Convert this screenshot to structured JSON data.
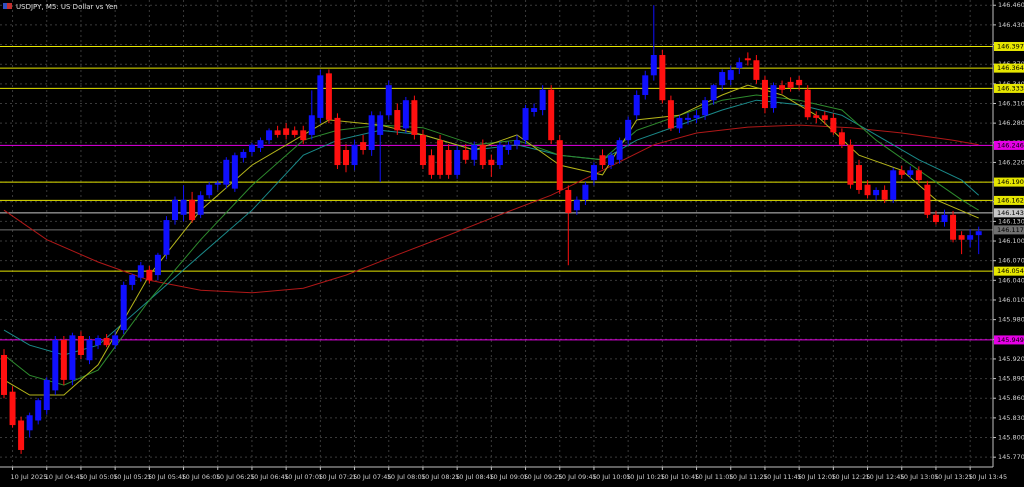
{
  "chart_data": {
    "type": "candlestick",
    "title": "USDJPY, M5:  US Dollar vs Yen",
    "categories": [
      null,
      "10 Jul 2025",
      null,
      null,
      null,
      "10 Jul 04:45",
      null,
      null,
      null,
      "10 Jul 05:05",
      null,
      null,
      null,
      "10 Jul 05:25",
      null,
      null,
      null,
      "10 Jul 05:45",
      null,
      null,
      null,
      "10 Jul 06:05",
      null,
      null,
      null,
      "10 Jul 06:25",
      null,
      null,
      null,
      "10 Jul 06:45",
      null,
      null,
      null,
      "10 Jul 07:05",
      null,
      null,
      null,
      "10 Jul 07:25",
      null,
      null,
      null,
      "10 Jul 07:45",
      null,
      null,
      null,
      "10 Jul 08:05",
      null,
      null,
      null,
      "10 Jul 08:25",
      null,
      null,
      null,
      "10 Jul 08:45",
      null,
      null,
      null,
      "10 Jul 09:05",
      null,
      null,
      null,
      "10 Jul 09:25",
      null,
      null,
      null,
      "10 Jul 09:45",
      null,
      null,
      null,
      "10 Jul 10:05",
      null,
      null,
      null,
      "10 Jul 10:25",
      null,
      null,
      null,
      "10 Jul 10:45",
      null,
      null,
      null,
      "10 Jul 11:05",
      null,
      null,
      null,
      "10 Jul 11:25",
      null,
      null,
      null,
      "10 Jul 11:45",
      null,
      null,
      null,
      "10 Jul 12:05",
      null,
      null,
      null,
      "10 Jul 12:25",
      null,
      null,
      null,
      "10 Jul 12:45",
      null,
      null,
      null,
      "10 Jul 13:05",
      null,
      null,
      null,
      "10 Jul 13:25",
      null,
      null,
      null,
      "10 Jul 13:45",
      null
    ],
    "ohlc": [
      [
        145.926,
        145.935,
        145.86,
        145.865
      ],
      [
        145.87,
        145.878,
        145.815,
        145.819
      ],
      [
        145.826,
        145.832,
        145.775,
        145.781
      ],
      [
        145.811,
        145.838,
        145.8,
        145.834
      ],
      [
        145.826,
        145.86,
        145.82,
        145.857
      ],
      [
        145.842,
        145.892,
        145.835,
        145.888
      ],
      [
        145.872,
        145.955,
        145.865,
        145.949
      ],
      [
        145.949,
        145.955,
        145.88,
        145.888
      ],
      [
        145.888,
        145.96,
        145.88,
        145.956
      ],
      [
        145.955,
        145.962,
        145.92,
        145.926
      ],
      [
        145.918,
        145.955,
        145.912,
        145.949
      ],
      [
        145.941,
        145.956,
        145.935,
        145.952
      ],
      [
        145.952,
        145.958,
        145.938,
        145.941
      ],
      [
        145.941,
        145.962,
        145.935,
        145.956
      ],
      [
        145.964,
        146.038,
        145.958,
        146.033
      ],
      [
        146.033,
        146.05,
        146.025,
        146.048
      ],
      [
        146.044,
        146.068,
        146.038,
        146.063
      ],
      [
        146.056,
        146.062,
        146.035,
        146.04
      ],
      [
        146.048,
        146.082,
        146.04,
        146.079
      ],
      [
        146.079,
        146.138,
        146.072,
        146.132
      ],
      [
        146.132,
        146.168,
        146.125,
        146.163
      ],
      [
        146.14,
        146.185,
        146.13,
        146.163
      ],
      [
        146.163,
        146.175,
        146.128,
        146.132
      ],
      [
        146.14,
        146.176,
        146.135,
        146.17
      ],
      [
        146.17,
        146.19,
        146.165,
        146.186
      ],
      [
        146.186,
        146.192,
        146.178,
        146.189
      ],
      [
        146.186,
        146.228,
        146.18,
        146.224
      ],
      [
        146.18,
        146.235,
        146.175,
        146.231
      ],
      [
        146.227,
        146.24,
        146.22,
        146.236
      ],
      [
        146.236,
        146.25,
        146.23,
        146.247
      ],
      [
        146.242,
        146.258,
        146.236,
        146.254
      ],
      [
        146.254,
        146.272,
        146.248,
        146.269
      ],
      [
        146.269,
        146.276,
        146.258,
        146.262
      ],
      [
        146.272,
        146.28,
        146.255,
        146.262
      ],
      [
        146.269,
        146.275,
        146.258,
        146.262
      ],
      [
        146.269,
        146.276,
        146.248,
        146.254
      ],
      [
        146.262,
        146.33,
        146.255,
        146.292
      ],
      [
        146.288,
        146.362,
        146.28,
        146.353
      ],
      [
        146.356,
        146.362,
        146.28,
        146.285
      ],
      [
        146.288,
        146.295,
        146.21,
        146.216
      ],
      [
        146.239,
        146.248,
        146.205,
        146.216
      ],
      [
        146.216,
        146.255,
        146.208,
        146.247
      ],
      [
        146.251,
        146.262,
        146.232,
        146.239
      ],
      [
        146.239,
        146.298,
        146.23,
        146.292
      ],
      [
        146.262,
        146.298,
        146.19,
        146.292
      ],
      [
        146.292,
        146.345,
        146.285,
        146.338
      ],
      [
        146.3,
        146.31,
        146.262,
        146.269
      ],
      [
        146.272,
        146.32,
        146.265,
        146.315
      ],
      [
        146.315,
        146.322,
        146.255,
        146.262
      ],
      [
        146.262,
        146.27,
        146.21,
        146.216
      ],
      [
        146.231,
        146.24,
        146.195,
        146.201
      ],
      [
        146.254,
        146.262,
        146.195,
        146.201
      ],
      [
        146.239,
        146.248,
        146.195,
        146.201
      ],
      [
        146.201,
        146.245,
        146.195,
        146.239
      ],
      [
        146.239,
        146.248,
        146.218,
        146.224
      ],
      [
        146.224,
        146.252,
        146.215,
        146.247
      ],
      [
        146.247,
        146.255,
        146.21,
        146.216
      ],
      [
        146.224,
        146.232,
        146.198,
        146.216
      ],
      [
        146.216,
        146.252,
        146.21,
        146.247
      ],
      [
        146.239,
        146.252,
        146.232,
        146.247
      ],
      [
        146.247,
        146.262,
        146.24,
        146.254
      ],
      [
        146.254,
        146.308,
        146.248,
        146.303
      ],
      [
        146.297,
        146.31,
        146.29,
        146.303
      ],
      [
        146.3,
        146.338,
        146.292,
        146.331
      ],
      [
        146.331,
        146.338,
        146.248,
        146.254
      ],
      [
        146.254,
        146.262,
        146.172,
        146.178
      ],
      [
        146.178,
        146.185,
        146.063,
        146.143
      ],
      [
        146.147,
        146.168,
        146.14,
        146.163
      ],
      [
        146.163,
        146.19,
        146.155,
        146.186
      ],
      [
        146.193,
        146.22,
        146.185,
        146.216
      ],
      [
        146.231,
        146.24,
        146.21,
        146.216
      ],
      [
        146.216,
        146.236,
        146.21,
        146.231
      ],
      [
        146.224,
        146.258,
        146.218,
        146.254
      ],
      [
        146.254,
        146.29,
        146.248,
        146.285
      ],
      [
        146.292,
        146.33,
        146.285,
        146.323
      ],
      [
        146.323,
        146.36,
        146.316,
        146.353
      ],
      [
        146.353,
        146.46,
        146.345,
        146.384
      ],
      [
        146.384,
        146.392,
        146.31,
        146.315
      ],
      [
        146.315,
        146.322,
        146.268,
        146.272
      ],
      [
        146.272,
        146.292,
        146.265,
        146.288
      ],
      [
        146.285,
        146.295,
        146.278,
        146.288
      ],
      [
        146.288,
        146.3,
        146.28,
        146.292
      ],
      [
        146.292,
        146.32,
        146.285,
        146.315
      ],
      [
        146.315,
        146.34,
        146.308,
        146.338
      ],
      [
        146.338,
        146.362,
        146.33,
        146.358
      ],
      [
        146.346,
        146.368,
        146.338,
        146.361
      ],
      [
        146.364,
        146.38,
        146.355,
        146.373
      ],
      [
        146.379,
        146.388,
        146.368,
        146.376
      ],
      [
        146.376,
        146.384,
        146.34,
        146.346
      ],
      [
        146.346,
        146.352,
        146.295,
        146.303
      ],
      [
        146.303,
        146.342,
        146.296,
        146.338
      ],
      [
        146.338,
        146.345,
        146.325,
        146.331
      ],
      [
        146.343,
        146.35,
        146.328,
        146.334
      ],
      [
        146.346,
        146.352,
        146.33,
        146.338
      ],
      [
        146.331,
        146.338,
        146.285,
        146.289
      ],
      [
        146.292,
        146.298,
        146.28,
        146.288
      ],
      [
        146.292,
        146.298,
        146.278,
        146.285
      ],
      [
        146.288,
        146.295,
        146.262,
        146.266
      ],
      [
        146.266,
        146.272,
        146.242,
        146.247
      ],
      [
        146.247,
        146.255,
        146.18,
        146.186
      ],
      [
        146.216,
        146.224,
        146.172,
        146.178
      ],
      [
        146.186,
        146.193,
        146.165,
        146.17
      ],
      [
        146.17,
        146.182,
        146.162,
        146.178
      ],
      [
        146.178,
        146.185,
        146.158,
        146.163
      ],
      [
        146.163,
        146.212,
        146.158,
        146.208
      ],
      [
        146.208,
        146.215,
        146.195,
        146.201
      ],
      [
        146.201,
        146.214,
        146.195,
        146.208
      ],
      [
        146.208,
        146.214,
        146.188,
        146.193
      ],
      [
        146.186,
        146.192,
        146.135,
        146.14
      ],
      [
        146.14,
        146.146,
        146.125,
        146.129
      ],
      [
        146.129,
        146.148,
        146.122,
        146.14
      ],
      [
        146.14,
        146.146,
        146.098,
        146.102
      ],
      [
        146.109,
        146.115,
        146.08,
        146.102
      ],
      [
        146.102,
        146.118,
        146.09,
        146.109
      ],
      [
        146.109,
        146.122,
        146.08,
        146.115
      ]
    ],
    "up_color": "#1010ff",
    "down_color": "#ff1010",
    "series": [
      {
        "color": "#b01818",
        "x": [
          0,
          5,
          11,
          17,
          23,
          29,
          35,
          40,
          46,
          52,
          58,
          64,
          70,
          76,
          81,
          87,
          93,
          99,
          105,
          111,
          114
        ],
        "values": [
          146.147,
          146.102,
          146.068,
          146.04,
          146.025,
          146.021,
          146.028,
          146.048,
          146.079,
          146.109,
          146.14,
          146.17,
          146.208,
          146.247,
          146.265,
          146.274,
          146.277,
          146.273,
          146.265,
          146.254,
          146.247
        ]
      },
      {
        "color": "#1a8a8a",
        "x": [
          0,
          3,
          7,
          11,
          17,
          23,
          29,
          35,
          39,
          44,
          49,
          55,
          60,
          65,
          70,
          74,
          79,
          84,
          88,
          93,
          98,
          102,
          107,
          112,
          114
        ],
        "values": [
          145.964,
          145.941,
          145.926,
          145.941,
          146.01,
          146.079,
          146.147,
          146.231,
          146.254,
          146.269,
          146.262,
          146.239,
          146.247,
          146.231,
          146.224,
          146.254,
          146.277,
          146.3,
          146.315,
          146.308,
          146.292,
          146.262,
          146.224,
          146.193,
          146.17
        ]
      },
      {
        "color": "#2e8b2e",
        "x": [
          0,
          3,
          7,
          11,
          17,
          23,
          29,
          35,
          39,
          44,
          49,
          55,
          60,
          65,
          70,
          74,
          79,
          84,
          88,
          93,
          98,
          102,
          107,
          112,
          114
        ],
        "values": [
          145.926,
          145.895,
          145.88,
          145.903,
          146.01,
          146.102,
          146.185,
          146.254,
          146.269,
          146.277,
          146.273,
          146.247,
          146.254,
          146.231,
          146.224,
          146.269,
          146.292,
          146.315,
          146.323,
          146.315,
          146.3,
          146.254,
          146.208,
          146.163,
          146.147
        ]
      },
      {
        "color": "#b5b51a",
        "x": [
          0,
          3,
          7,
          11,
          17,
          23,
          29,
          35,
          38,
          44,
          49,
          55,
          60,
          65,
          70,
          74,
          79,
          84,
          87,
          91,
          95,
          100,
          105,
          109,
          114
        ],
        "values": [
          145.888,
          145.865,
          145.865,
          145.911,
          146.048,
          146.147,
          146.216,
          146.262,
          146.285,
          146.277,
          146.262,
          146.239,
          146.262,
          146.216,
          146.201,
          146.285,
          146.292,
          146.323,
          146.338,
          146.323,
          146.292,
          146.231,
          146.208,
          146.163,
          146.135
        ]
      }
    ],
    "levels": [
      {
        "value": 146.397,
        "label": "146.397",
        "color": "#e6e600"
      },
      {
        "value": 146.364,
        "label": "146.364",
        "color": "#e6e600"
      },
      {
        "value": 146.333,
        "label": "146.333",
        "color": "#e6e600"
      },
      {
        "value": 146.246,
        "label": "146.246",
        "color": "#e600e6"
      },
      {
        "value": 146.19,
        "label": "146.190",
        "color": "#e6e600"
      },
      {
        "value": 146.162,
        "label": "146.162",
        "color": "#e6e600"
      },
      {
        "value": 146.143,
        "label": "146.143",
        "color": "#c8c8c8"
      },
      {
        "value": 146.117,
        "label": "146.117",
        "color": "#707070"
      },
      {
        "value": 146.054,
        "label": "146.054",
        "color": "#e6e600"
      },
      {
        "value": 145.949,
        "label": "145.949",
        "color": "#e600e6"
      }
    ],
    "ylim": [
      145.755,
      146.468
    ],
    "yticks": [
      {
        "value": 146.46,
        "label": "146.460"
      },
      {
        "value": 146.43,
        "label": "146.430"
      },
      {
        "value": 146.4,
        "label": "146.400"
      },
      {
        "value": 146.37,
        "label": "146.370"
      },
      {
        "value": 146.34,
        "label": "146.340"
      },
      {
        "value": 146.31,
        "label": "146.310"
      },
      {
        "value": 146.28,
        "label": "146.280"
      },
      {
        "value": 146.25,
        "label": "146.250"
      },
      {
        "value": 146.22,
        "label": "146.220"
      },
      {
        "value": 146.19,
        "label": "146.190"
      },
      {
        "value": 146.16,
        "label": "146.160"
      },
      {
        "value": 146.13,
        "label": "146.130"
      },
      {
        "value": 146.1,
        "label": "146.100"
      },
      {
        "value": 146.07,
        "label": "146.070"
      },
      {
        "value": 146.04,
        "label": "146.040"
      },
      {
        "value": 146.01,
        "label": "146.010"
      },
      {
        "value": 145.98,
        "label": "145.980"
      },
      {
        "value": 145.95,
        "label": "145.950"
      },
      {
        "value": 145.92,
        "label": "145.920"
      },
      {
        "value": 145.89,
        "label": "145.890"
      },
      {
        "value": 145.86,
        "label": "145.860"
      },
      {
        "value": 145.83,
        "label": "145.830"
      },
      {
        "value": 145.8,
        "label": "145.800"
      },
      {
        "value": 145.77,
        "label": "145.770"
      }
    ],
    "grid": true
  }
}
